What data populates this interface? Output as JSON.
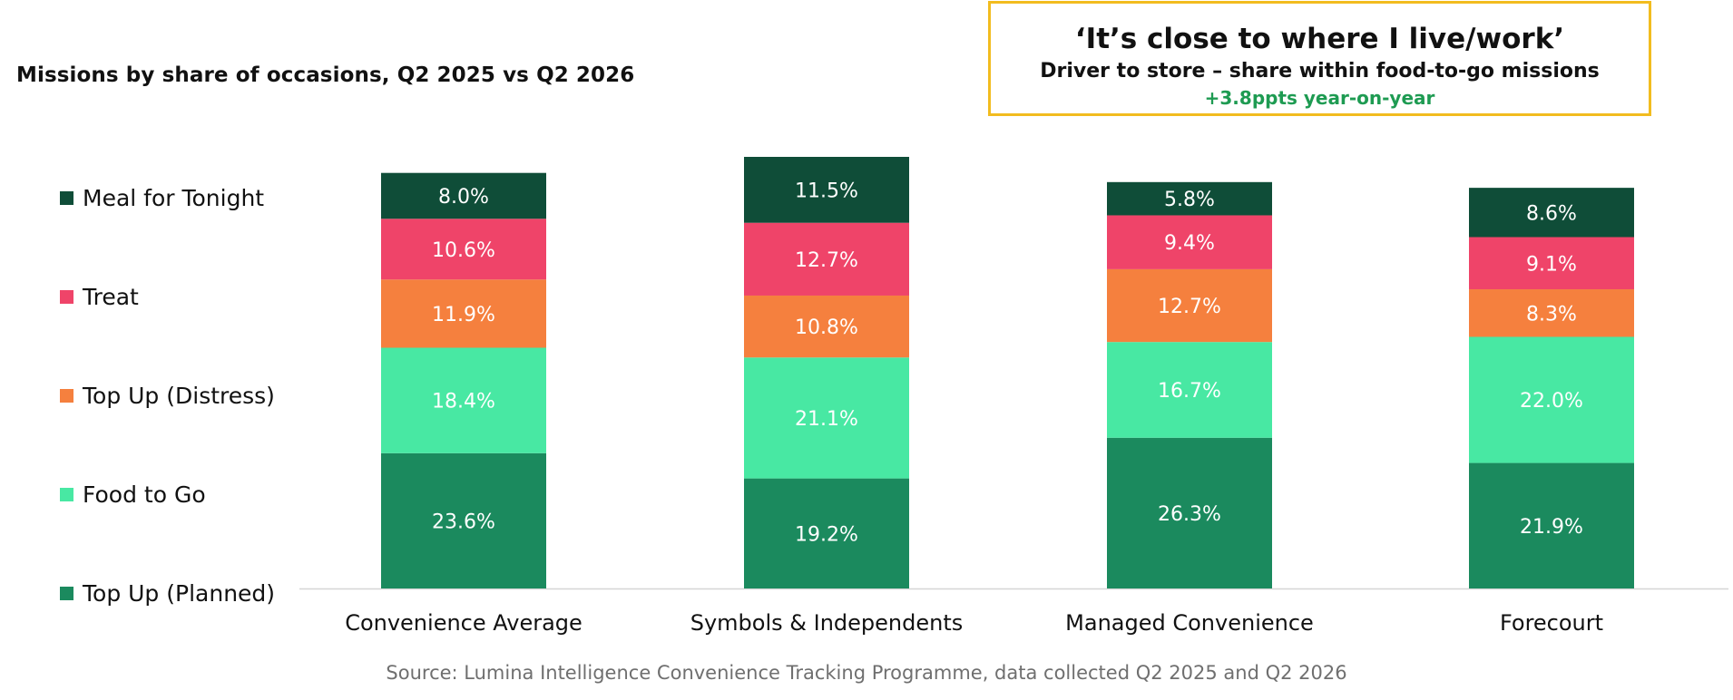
{
  "chart_data": {
    "type": "bar",
    "stacked": true,
    "title": "Missions by share of occasions, Q2 2025 vs Q2 2026",
    "categories": [
      "Convenience Average",
      "Symbols & Independents",
      "Managed Convenience",
      "Forecourt"
    ],
    "series": [
      {
        "name": "Top Up (Planned)",
        "color": "#1b8a5e",
        "values": [
          23.6,
          19.2,
          26.3,
          21.9
        ],
        "labels": [
          "23.6%",
          "19.2%",
          "26.3%",
          "21.9%"
        ]
      },
      {
        "name": "Food to Go",
        "color": "#48e8a3",
        "values": [
          18.4,
          21.1,
          16.7,
          22.0
        ],
        "labels": [
          "18.4%",
          "21.1%",
          "16.7%",
          "22.0%"
        ]
      },
      {
        "name": "Top Up (Distress)",
        "color": "#f5803e",
        "values": [
          11.9,
          10.8,
          12.7,
          8.3
        ],
        "labels": [
          "11.9%",
          "10.8%",
          "12.7%",
          "8.3%"
        ]
      },
      {
        "name": "Treat",
        "color": "#ef4469",
        "values": [
          10.6,
          12.7,
          9.4,
          9.1
        ],
        "labels": [
          "10.6%",
          "12.7%",
          "9.4%",
          "9.1%"
        ]
      },
      {
        "name": "Meal for Tonight",
        "color": "#0f4d38",
        "values": [
          8.0,
          11.5,
          5.8,
          8.6
        ],
        "labels": [
          "8.0%",
          "11.5%",
          "5.8%",
          "8.6%"
        ]
      }
    ],
    "legend_order": [
      "Meal for Tonight",
      "Treat",
      "Top Up (Distress)",
      "Food to Go",
      "Top Up (Planned)"
    ],
    "legend_placement": "left",
    "grid": false
  },
  "callout": {
    "heading": "‘It’s close to where I live/work’",
    "subheading": "Driver to store – share within food-to-go missions",
    "change": "+3.8ppts year-on-year",
    "border_color": "#f2bc1f",
    "change_color": "#1e9b52"
  },
  "source": "Source: Lumina Intelligence Convenience Tracking Programme, data collected Q2 2025 and Q2 2026"
}
